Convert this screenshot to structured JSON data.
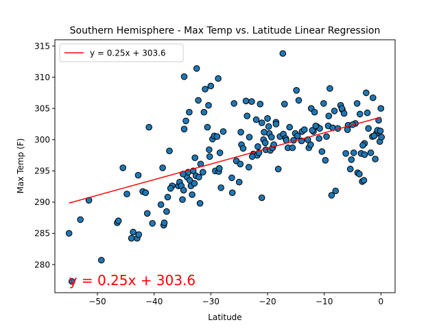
{
  "chart_data": {
    "type": "scatter",
    "title": "Southern Hemisphere - Max Temp vs. Latitude Linear Regression",
    "xlabel": "Latitude",
    "ylabel": "Max Temp (F)",
    "xlim": [
      -57.5,
      2.5
    ],
    "ylim": [
      275.5,
      316.0
    ],
    "xticks": [
      -50,
      -40,
      -30,
      -20,
      -10,
      0
    ],
    "yticks": [
      280,
      285,
      290,
      295,
      300,
      305,
      310,
      315
    ],
    "grid": false,
    "legend": {
      "position": "top-left",
      "entries": [
        "y = 0.25x + 303.6"
      ]
    },
    "annotation": {
      "text": "y = 0.25x + 303.6",
      "x": -55,
      "y": 277.5,
      "color": "#ff0000"
    },
    "colors": {
      "points": "#1f77b4",
      "point_edge": "#000000",
      "regression": "#ff0000"
    },
    "regression": {
      "slope": 0.25,
      "intercept": 303.6,
      "x_range": [
        -55,
        0
      ]
    },
    "points": [
      [
        -55,
        285
      ],
      [
        -54.5,
        277.3
      ],
      [
        -53,
        287.2
      ],
      [
        -51.5,
        290.3
      ],
      [
        -49.3,
        280.7
      ],
      [
        -46.5,
        286.7
      ],
      [
        -46.3,
        287
      ],
      [
        -45.5,
        295.5
      ],
      [
        -44,
        284.2
      ],
      [
        -43.7,
        285.2
      ],
      [
        -43,
        284.2
      ],
      [
        -42.8,
        294.3
      ],
      [
        -42.7,
        284.8
      ],
      [
        -42,
        291.7
      ],
      [
        -41.5,
        291.5
      ],
      [
        -41.2,
        288.2
      ],
      [
        -40.9,
        302
      ],
      [
        -38.5,
        295.5
      ],
      [
        -38.3,
        286.3
      ],
      [
        -38.2,
        286.7
      ],
      [
        -37.8,
        288.5
      ],
      [
        -37.6,
        290.8
      ],
      [
        -37.3,
        298.2
      ],
      [
        -36.8,
        292.6
      ],
      [
        -35.7,
        292.6
      ],
      [
        -35.5,
        293.2
      ],
      [
        -35.2,
        292.6
      ],
      [
        -35,
        290.4
      ],
      [
        -34.8,
        291.9
      ],
      [
        -34.7,
        310.1
      ],
      [
        -34.7,
        301.7
      ],
      [
        -34.4,
        303
      ],
      [
        -34.2,
        294
      ],
      [
        -34,
        294.8
      ],
      [
        -33.8,
        304.4
      ],
      [
        -33.7,
        293.5
      ],
      [
        -33.5,
        292.6
      ],
      [
        -33.3,
        291.2
      ],
      [
        -33.1,
        295
      ],
      [
        -32.9,
        293
      ],
      [
        -32.8,
        297.1
      ],
      [
        -32.6,
        294.2
      ],
      [
        -32.5,
        311.4
      ],
      [
        -32.2,
        306.3
      ],
      [
        -31.9,
        289.8
      ],
      [
        -31.8,
        296.1
      ],
      [
        -31.4,
        294.8
      ],
      [
        -31.2,
        304.4
      ],
      [
        -31,
        308.1
      ],
      [
        -30.6,
        302
      ],
      [
        -30.4,
        305.5
      ],
      [
        -30.3,
        298.4
      ],
      [
        -30.2,
        297.3
      ],
      [
        -30,
        308.6
      ],
      [
        -29.7,
        300.1
      ],
      [
        -29.4,
        300.6
      ],
      [
        -29.2,
        295
      ],
      [
        -28.7,
        309.8
      ],
      [
        -28.6,
        294.9
      ],
      [
        -28.5,
        295.4
      ],
      [
        -28.4,
        297.9
      ],
      [
        -28.2,
        292.3
      ],
      [
        -27.8,
        301.3
      ],
      [
        -26.2,
        291.5
      ],
      [
        -25.9,
        305.8
      ],
      [
        -25.5,
        296.6
      ],
      [
        -25,
        293.2
      ],
      [
        -24.8,
        296.1
      ],
      [
        -24.7,
        301.2
      ],
      [
        -24.6,
        299.2
      ],
      [
        -24.3,
        298.6
      ],
      [
        -23.8,
        306.2
      ],
      [
        -23.3,
        295.6
      ],
      [
        -23.2,
        300.4
      ],
      [
        -22.8,
        306.1
      ],
      [
        -22.5,
        297.7
      ],
      [
        -22,
        303.2
      ],
      [
        -21.8,
        297.5
      ],
      [
        -21.5,
        297.9
      ],
      [
        -21.3,
        305.7
      ],
      [
        -21,
        302.7
      ],
      [
        -21,
        290.7
      ],
      [
        -20.7,
        300
      ],
      [
        -20.4,
        299.5
      ],
      [
        -20.3,
        298.4
      ],
      [
        -20,
        303.4
      ],
      [
        -19.8,
        302.1
      ],
      [
        -19.7,
        301
      ],
      [
        -19.5,
        298.3
      ],
      [
        -19.3,
        300.4
      ],
      [
        -19.1,
        298.7
      ],
      [
        -18.9,
        299.2
      ],
      [
        -18.5,
        302.8
      ],
      [
        -18.1,
        295.3
      ],
      [
        -17.8,
        300.5
      ],
      [
        -17.3,
        313.8
      ],
      [
        -17.2,
        300.9
      ],
      [
        -17,
        305.7
      ],
      [
        -16.8,
        300.2
      ],
      [
        -16.4,
        298.7
      ],
      [
        -16.1,
        302
      ],
      [
        -15.6,
        298.7
      ],
      [
        -15.1,
        301
      ],
      [
        -14.9,
        307.9
      ],
      [
        -14.5,
        306.3
      ],
      [
        -14,
        299.8
      ],
      [
        -13.9,
        301.3
      ],
      [
        -13.5,
        301.6
      ],
      [
        -12.9,
        300
      ],
      [
        -12.7,
        298.7
      ],
      [
        -12.4,
        299.2
      ],
      [
        -12.3,
        305
      ],
      [
        -11.9,
        301.3
      ],
      [
        -11.7,
        304.4
      ],
      [
        -11.3,
        302.1
      ],
      [
        -10.8,
        301.8
      ],
      [
        -10.4,
        298.1
      ],
      [
        -10.1,
        305.8
      ],
      [
        -9.8,
        296.7
      ],
      [
        -9.6,
        300.5
      ],
      [
        -9.3,
        302.2
      ],
      [
        -9.2,
        303.8
      ],
      [
        -9,
        308.2
      ],
      [
        -8.7,
        291.1
      ],
      [
        -8.5,
        301.9
      ],
      [
        -8,
        291.8
      ],
      [
        -7.6,
        301.8
      ],
      [
        -7.1,
        305.5
      ],
      [
        -6.8,
        304.8
      ],
      [
        -6.5,
        304.2
      ],
      [
        -6.2,
        297.8
      ],
      [
        -5.8,
        302.3
      ],
      [
        -5.4,
        295.3
      ],
      [
        -5.2,
        296.8
      ],
      [
        -4.8,
        297.9
      ],
      [
        -4.2,
        305.8
      ],
      [
        -4.1,
        294.7
      ],
      [
        -3.7,
        304.1
      ],
      [
        -3.5,
        297.8
      ],
      [
        -3.3,
        293.3
      ],
      [
        -3,
        293.5
      ],
      [
        -2.9,
        299.4
      ],
      [
        -2.6,
        307.5
      ],
      [
        -2.4,
        304.3
      ],
      [
        -2.2,
        301.8
      ],
      [
        -1.8,
        297.9
      ],
      [
        -1.5,
        300.5
      ],
      [
        -1.4,
        306.7
      ],
      [
        -1,
        296.9
      ],
      [
        -0.8,
        301
      ],
      [
        -0.6,
        301.5
      ],
      [
        -0.4,
        303.1
      ],
      [
        -0.2,
        299.7
      ],
      [
        0.1,
        300.4
      ],
      [
        -0.1,
        301.4
      ],
      [
        0,
        305
      ],
      [
        -3.2,
        299.1
      ],
      [
        -3.8,
        294.5
      ],
      [
        -4.5,
        302.6
      ],
      [
        -5.9,
        301.6
      ],
      [
        -6.9,
        305
      ],
      [
        -10.9,
        300.2
      ],
      [
        -12.1,
        301.5
      ],
      [
        -14.7,
        300.6
      ],
      [
        -16.7,
        299.9
      ],
      [
        -18.5,
        302.5
      ],
      [
        -21.7,
        298.9
      ],
      [
        -22.7,
        297.3
      ],
      [
        -26.3,
        293.9
      ],
      [
        -28.9,
        300.5
      ],
      [
        -32.1,
        294
      ],
      [
        -34.9,
        294.5
      ],
      [
        -37.1,
        292.2
      ],
      [
        -38.8,
        289.6
      ],
      [
        -40.3,
        286.6
      ],
      [
        -44.8,
        291.3
      ],
      [
        -8.2,
        304.6
      ],
      [
        -11.5,
        302.2
      ],
      [
        -15.4,
        299.9
      ],
      [
        -20.6,
        301.2
      ],
      [
        -23.6,
        303.8
      ],
      [
        -2.9,
        297.6
      ],
      [
        -5,
        302.4
      ],
      [
        -1.2,
        300.6
      ]
    ]
  }
}
